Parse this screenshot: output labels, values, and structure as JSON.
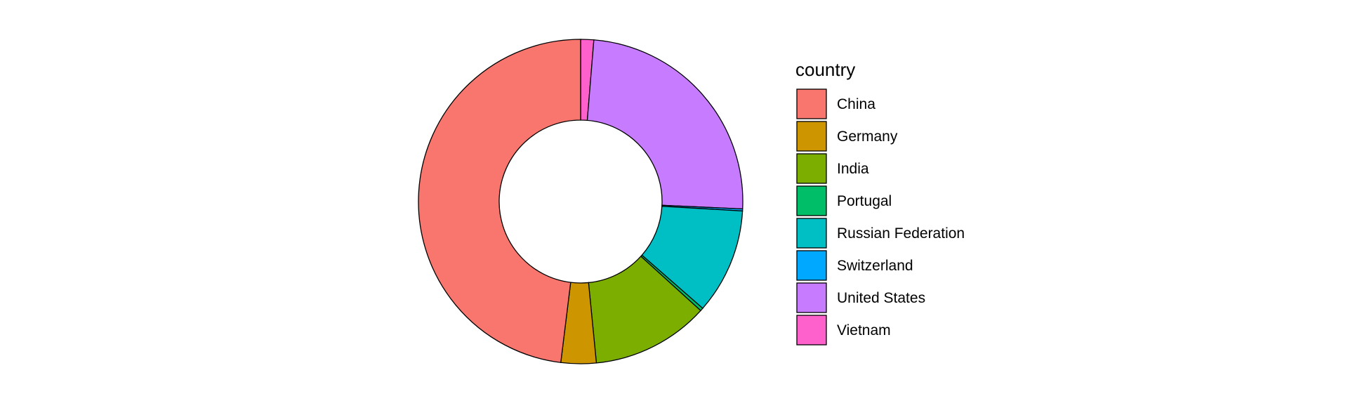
{
  "chart_data": {
    "type": "pie",
    "variant": "donut",
    "legend_title": "country",
    "legend_position": "right",
    "categories": [
      "China",
      "Germany",
      "India",
      "Portugal",
      "Russian Federation",
      "Switzerland",
      "United States",
      "Vietnam"
    ],
    "values": [
      48.0,
      3.5,
      11.7,
      0.3,
      10.5,
      0.2,
      24.4,
      1.3
    ],
    "colors": [
      "#F8766D",
      "#CD9600",
      "#7CAE00",
      "#00BE67",
      "#00BFC4",
      "#00A9FF",
      "#C77CFF",
      "#FF61CC"
    ],
    "slice_order_clockwise_from_top": [
      "Vietnam",
      "United States",
      "Switzerland",
      "Russian Federation",
      "Portugal",
      "India",
      "Germany",
      "China"
    ],
    "grid": false
  }
}
